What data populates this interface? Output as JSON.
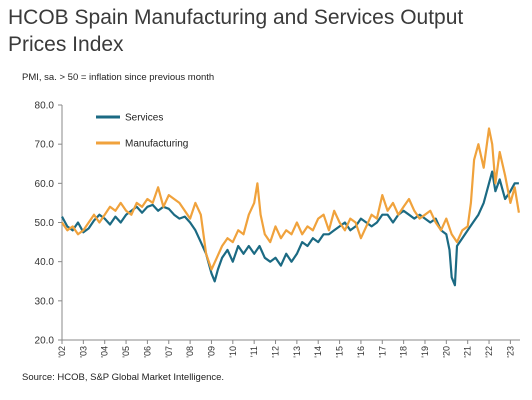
{
  "title": "HCOB Spain Manufacturing and Services Output Prices Index",
  "subtitle": "PMI, sa. > 50 = inflation since previous month",
  "source": "Source: HCOB, S&P Global Market Intelligence.",
  "chart_data": {
    "type": "line",
    "title": "HCOB Spain Manufacturing and Services Output Prices Index",
    "ylabel": "PMI, sa. > 50 = inflation since previous month",
    "ylim": [
      20,
      80
    ],
    "yticks": [
      "20.0",
      "30.0",
      "40.0",
      "50.0",
      "60.0",
      "70.0",
      "80.0"
    ],
    "xlim": [
      2002,
      2023.45
    ],
    "xticks": [
      "'02",
      "'03",
      "'04",
      "'05",
      "'06",
      "'07",
      "'08",
      "'09",
      "'10",
      "'11",
      "'12",
      "'13",
      "'14",
      "'15",
      "'16",
      "'17",
      "'18",
      "'19",
      "'20",
      "'21",
      "'22",
      "'23"
    ],
    "legend": "top-left",
    "grid": false,
    "series": [
      {
        "name": "Services",
        "color": "#1b6a83",
        "x": [
          2002.0,
          2002.25,
          2002.5,
          2002.75,
          2003.0,
          2003.25,
          2003.5,
          2003.75,
          2004.0,
          2004.25,
          2004.5,
          2004.75,
          2005.0,
          2005.25,
          2005.5,
          2005.75,
          2006.0,
          2006.25,
          2006.5,
          2006.75,
          2007.0,
          2007.25,
          2007.5,
          2007.75,
          2008.0,
          2008.25,
          2008.5,
          2008.75,
          2009.0,
          2009.15,
          2009.3,
          2009.5,
          2009.75,
          2010.0,
          2010.25,
          2010.5,
          2010.75,
          2011.0,
          2011.25,
          2011.5,
          2011.75,
          2012.0,
          2012.25,
          2012.5,
          2012.75,
          2013.0,
          2013.25,
          2013.5,
          2013.75,
          2014.0,
          2014.25,
          2014.5,
          2014.75,
          2015.0,
          2015.25,
          2015.5,
          2015.75,
          2016.0,
          2016.25,
          2016.5,
          2016.75,
          2017.0,
          2017.25,
          2017.5,
          2017.75,
          2018.0,
          2018.25,
          2018.5,
          2018.75,
          2019.0,
          2019.25,
          2019.5,
          2019.75,
          2020.0,
          2020.15,
          2020.25,
          2020.4,
          2020.5,
          2020.75,
          2021.0,
          2021.25,
          2021.5,
          2021.75,
          2022.0,
          2022.15,
          2022.3,
          2022.5,
          2022.75,
          2023.0,
          2023.2,
          2023.4
        ],
        "values": [
          51.5,
          49,
          48,
          50,
          47.5,
          48.5,
          50.5,
          52,
          51,
          49.5,
          51.5,
          50,
          52,
          53,
          54,
          52.5,
          54,
          54.5,
          53,
          54,
          53.5,
          52,
          51,
          51.5,
          50,
          48,
          45,
          42,
          37,
          35,
          38,
          41,
          43,
          40,
          44,
          42,
          44,
          42,
          44,
          41,
          40,
          41,
          39,
          42,
          40,
          42,
          45,
          44,
          46,
          45,
          47,
          47,
          48,
          49,
          50,
          48,
          49,
          51,
          50,
          49,
          50,
          52,
          52,
          50,
          52,
          53,
          52,
          51,
          52,
          51,
          50,
          51,
          48,
          47,
          43,
          36,
          34,
          44,
          46,
          48,
          50,
          52,
          55,
          60,
          63,
          58,
          61,
          56,
          58,
          60,
          60
        ]
      },
      {
        "name": "Manufacturing",
        "color": "#f0a23c",
        "x": [
          2002.0,
          2002.25,
          2002.5,
          2002.75,
          2003.0,
          2003.25,
          2003.5,
          2003.75,
          2004.0,
          2004.25,
          2004.5,
          2004.75,
          2005.0,
          2005.25,
          2005.5,
          2005.75,
          2006.0,
          2006.25,
          2006.5,
          2006.75,
          2007.0,
          2007.25,
          2007.5,
          2007.75,
          2008.0,
          2008.25,
          2008.5,
          2008.75,
          2009.0,
          2009.25,
          2009.5,
          2009.75,
          2010.0,
          2010.25,
          2010.5,
          2010.75,
          2011.0,
          2011.15,
          2011.3,
          2011.5,
          2011.75,
          2012.0,
          2012.25,
          2012.5,
          2012.75,
          2013.0,
          2013.25,
          2013.5,
          2013.75,
          2014.0,
          2014.25,
          2014.5,
          2014.75,
          2015.0,
          2015.25,
          2015.5,
          2015.75,
          2016.0,
          2016.25,
          2016.5,
          2016.75,
          2017.0,
          2017.25,
          2017.5,
          2017.75,
          2018.0,
          2018.25,
          2018.5,
          2018.75,
          2019.0,
          2019.25,
          2019.5,
          2019.75,
          2020.0,
          2020.25,
          2020.5,
          2020.75,
          2021.0,
          2021.15,
          2021.3,
          2021.5,
          2021.75,
          2022.0,
          2022.15,
          2022.3,
          2022.5,
          2022.75,
          2023.0,
          2023.2,
          2023.4
        ],
        "values": [
          50,
          48,
          49,
          47,
          48,
          50,
          52,
          50,
          52,
          54,
          53,
          55,
          53,
          52,
          55,
          54,
          56,
          55,
          59,
          54,
          57,
          56,
          55,
          53,
          51,
          55,
          52,
          42,
          38,
          41,
          44,
          46,
          45,
          48,
          47,
          52,
          55,
          60,
          52,
          47,
          45,
          49,
          46,
          48,
          47,
          50,
          47,
          49,
          48,
          51,
          52,
          48,
          53,
          50,
          48,
          51,
          50,
          46,
          49,
          52,
          51,
          57,
          53,
          55,
          52,
          54,
          56,
          53,
          51,
          52,
          53,
          50,
          48,
          51,
          47,
          45,
          48,
          49,
          55,
          66,
          70,
          64,
          74,
          70,
          60,
          68,
          62,
          55,
          59,
          52.5
        ]
      }
    ]
  }
}
